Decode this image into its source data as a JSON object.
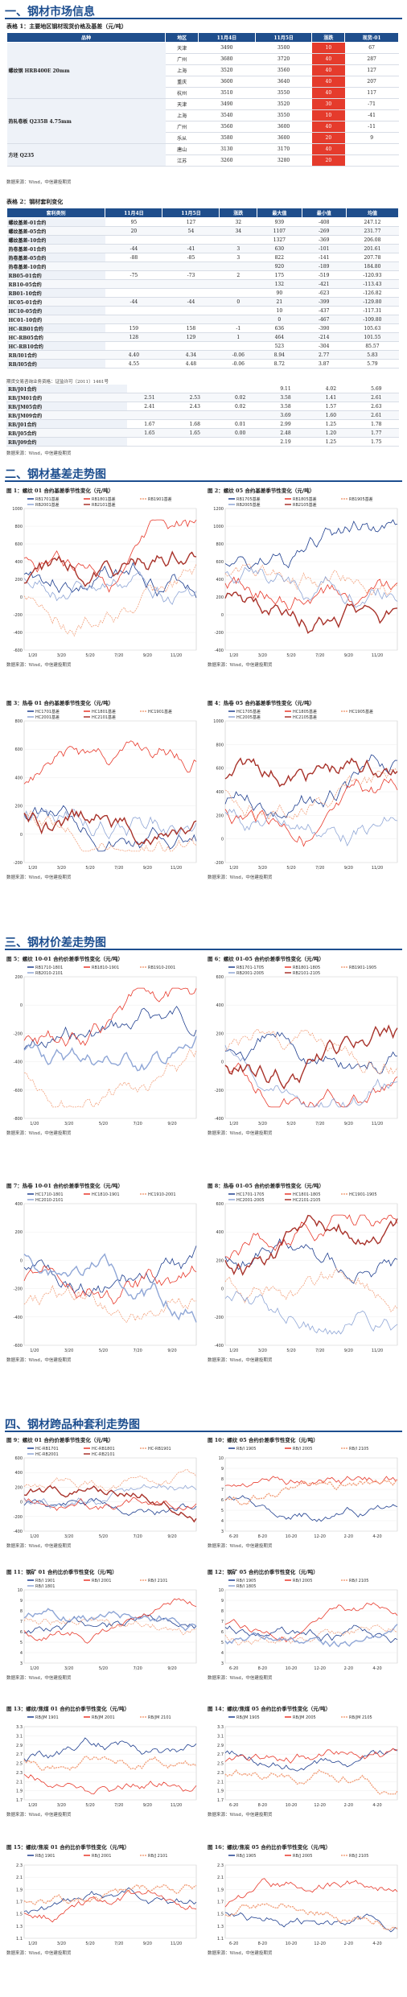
{
  "sec1": {
    "title": "一、钢材市场信息"
  },
  "table1": {
    "caption": "表格 1：主要地区钢材现货价格及基差（元/吨）",
    "headers": [
      "品种",
      "地区",
      "11月4日",
      "11月5日",
      "涨跌",
      "现货-01"
    ],
    "groups": [
      {
        "name": "螺纹钢 HRB400E 20mm",
        "rows": [
          [
            "天津",
            "3490",
            "3500",
            "10",
            "67"
          ],
          [
            "广州",
            "3680",
            "3720",
            "40",
            "287"
          ],
          [
            "上海",
            "3520",
            "3560",
            "40",
            "127"
          ],
          [
            "重庆",
            "3600",
            "3640",
            "40",
            "207"
          ],
          [
            "杭州",
            "3510",
            "3550",
            "40",
            "117"
          ]
        ]
      },
      {
        "name": "热轧卷板 Q235B 4.75mm",
        "rows": [
          [
            "天津",
            "3490",
            "3520",
            "30",
            "-71"
          ],
          [
            "上海",
            "3540",
            "3550",
            "10",
            "-41"
          ],
          [
            "广州",
            "3560",
            "3600",
            "40",
            "-11"
          ],
          [
            "乐从",
            "3580",
            "3600",
            "20",
            "9"
          ]
        ]
      },
      {
        "name": "方坯 Q235",
        "rows": [
          [
            "唐山",
            "3130",
            "3170",
            "40",
            ""
          ],
          [
            "江苏",
            "3260",
            "3280",
            "20",
            ""
          ]
        ]
      }
    ],
    "source": "数据来源：Wind，中信建投期货"
  },
  "table2": {
    "caption": "表格 2：钢材套利变化",
    "headers": [
      "套利类别",
      "11月4日",
      "11月5日",
      "涨跌",
      "最大值",
      "最小值",
      "均值"
    ],
    "rows": [
      [
        "螺纹基差-01合约",
        "95",
        "127",
        "32",
        "939",
        "-408",
        "247.12"
      ],
      [
        "螺纹基差-05合约",
        "20",
        "54",
        "34",
        "1107",
        "-269",
        "231.77"
      ],
      [
        "螺纹基差-10合约",
        "",
        "",
        "",
        "1327",
        "-369",
        "206.08"
      ],
      [
        "热卷基差-01合约",
        "-44",
        "-41",
        "3",
        "630",
        "-101",
        "201.61"
      ],
      [
        "热卷基差-05合约",
        "-88",
        "-85",
        "3",
        "822",
        "-141",
        "207.78"
      ],
      [
        "热卷基差-10合约",
        "",
        "",
        "",
        "920",
        "-189",
        "184.80"
      ],
      [
        "RB05-01合约",
        "-75",
        "-73",
        "2",
        "175",
        "-519",
        "-120.93"
      ],
      [
        "RB10-05合约",
        "",
        "",
        "",
        "132",
        "-421",
        "-113.43"
      ],
      [
        "RB01-10合约",
        "",
        "",
        "",
        "90",
        "-623",
        "-126.82"
      ],
      [
        "HC05-01合约",
        "-44",
        "-44",
        "0",
        "21",
        "-399",
        "-129.80"
      ],
      [
        "HC10-05合约",
        "",
        "",
        "",
        "10",
        "-437",
        "-117.31"
      ],
      [
        "HC01-10合约",
        "",
        "",
        "",
        "0",
        "-467",
        "-109.80"
      ],
      [
        "HC-RB01合约",
        "159",
        "158",
        "-1",
        "636",
        "-390",
        "105.63"
      ],
      [
        "HC-RB05合约",
        "128",
        "129",
        "1",
        "464",
        "-214",
        "101.55"
      ],
      [
        "HC-RB10合约",
        "",
        "",
        "",
        "523",
        "-304",
        "85.57"
      ],
      [
        "RB/I01合约",
        "4.40",
        "4.34",
        "-0.06",
        "8.94",
        "2.77",
        "5.83"
      ],
      [
        "RB/I05合约",
        "4.55",
        "4.48",
        "-0.06",
        "8.72",
        "3.87",
        "5.79"
      ]
    ],
    "note": "期货交易咨询业务资格：证监许可〔2011〕1461号",
    "cont_rows": [
      [
        "RB/J01合约",
        "",
        "",
        "",
        "9.11",
        "4.02",
        "5.69"
      ],
      [
        "RB/JM01合约",
        "2.51",
        "2.53",
        "0.02",
        "3.58",
        "1.41",
        "2.61"
      ],
      [
        "RB/JM05合约",
        "2.41",
        "2.43",
        "0.02",
        "3.58",
        "1.57",
        "2.63"
      ],
      [
        "RB/JM09合约",
        "",
        "",
        "",
        "3.69",
        "1.60",
        "2.61"
      ],
      [
        "RB/J01合约",
        "1.67",
        "1.68",
        "0.01",
        "2.99",
        "1.25",
        "1.78"
      ],
      [
        "RB/J05合约",
        "1.65",
        "1.65",
        "0.00",
        "2.48",
        "1.20",
        "1.77"
      ],
      [
        "RB/J09合约",
        "",
        "",
        "",
        "2.19",
        "1.25",
        "1.75"
      ]
    ],
    "source": "数据来源：Wind，中信建投期货"
  },
  "sec2": {
    "title": "二、钢材基差走势图"
  },
  "sec3": {
    "title": "三、钢材价差走势图"
  },
  "sec4": {
    "title": "四、钢材跨品种套利走势图"
  },
  "source_text": "数据来源：Wind，中信建投期货",
  "figures": {
    "f1": {
      "title": "图 1：螺纹 01 合约基差季节性变化（元/吨）",
      "legend": [
        "RB1701基差",
        "RB1801基差",
        "RB1901基差",
        "RB2001基差",
        "RB2101基差"
      ],
      "yticks": [
        "1000",
        "800",
        "600",
        "400",
        "200",
        "0",
        "-200",
        "-400",
        "-600"
      ],
      "xticks": [
        "1/20",
        "3/20",
        "5/20",
        "7/20",
        "9/20",
        "11/20"
      ]
    },
    "f2": {
      "title": "图 2：螺纹 05 合约基差季节性变化（元/吨）",
      "legend": [
        "RB1705基差",
        "RB1805基差",
        "RB1905基差",
        "RB2005基差",
        "RB2105基差"
      ],
      "yticks": [
        "1200",
        "1000",
        "800",
        "600",
        "400",
        "200",
        "0",
        "-200",
        "-400"
      ],
      "xticks": [
        "1/20",
        "3/20",
        "5/20",
        "7/20",
        "9/20",
        "11/20"
      ]
    },
    "f3": {
      "title": "图 3：热卷 01 合约基差季节性变化（元/吨）",
      "legend": [
        "HC1701基差",
        "HC1801基差",
        "HC1901基差",
        "HC2001基差",
        "HC2101基差"
      ],
      "yticks": [
        "800",
        "600",
        "400",
        "200",
        "0",
        "-200"
      ],
      "xticks": [
        "1/20",
        "3/20",
        "5/20",
        "7/20",
        "9/20",
        "11/20"
      ]
    },
    "f4": {
      "title": "图 4：热卷 05 合约基差季节性变化（元/吨）",
      "legend": [
        "HC1705基差",
        "HC1805基差",
        "HC1905基差",
        "HC2005基差",
        "HC2105基差"
      ],
      "yticks": [
        "1000",
        "800",
        "600",
        "400",
        "200",
        "0",
        "-200"
      ],
      "xticks": [
        "1/20",
        "3/20",
        "5/20",
        "7/20",
        "9/20",
        "11/20"
      ]
    },
    "f5": {
      "title": "图 5：螺纹 10-01 合约价差季节性变化（元/吨）",
      "legend": [
        "RB1710-1801",
        "RB1810-1901",
        "RB1910-2001",
        "RB2010-2101"
      ],
      "yticks": [
        "200",
        "0",
        "-200",
        "-400",
        "-600",
        "-800"
      ],
      "xticks": [
        "1/20",
        "3/20",
        "5/20",
        "7/20",
        "9/20"
      ]
    },
    "f6": {
      "title": "图 6：螺纹 01-05 合约价差季节性变化（元/吨）",
      "legend": [
        "RB1701-1705",
        "RB1801-1805",
        "RB1901-1905",
        "RB2001-2005",
        "RB2101-2105"
      ],
      "yticks": [
        "600",
        "400",
        "200",
        "0",
        "-200",
        "-400"
      ],
      "xticks": [
        "1/20",
        "3/20",
        "5/20",
        "7/20",
        "9/20",
        "11/20"
      ]
    },
    "f7": {
      "title": "图 7：热卷 10-01 合约价差季节性变化（元/吨）",
      "legend": [
        "HC1710-1801",
        "HC1810-1901",
        "HC1910-2001",
        "HC2010-2101"
      ],
      "yticks": [
        "400",
        "200",
        "0",
        "-200",
        "-400",
        "-600"
      ],
      "xticks": [
        "1/20",
        "3/20",
        "5/20",
        "7/20",
        "9/20"
      ]
    },
    "f8": {
      "title": "图 8：热卷 01-05 合约价差季节性变化（元/吨）",
      "legend": [
        "HC1701-1705",
        "HC1801-1805",
        "HC1901-1905",
        "HC2001-2005",
        "HC2101-2105"
      ],
      "yticks": [
        "600",
        "400",
        "200",
        "0",
        "-200",
        "-400"
      ],
      "xticks": [
        "1/20",
        "3/20",
        "5/20",
        "7/20",
        "9/20",
        "11/20"
      ]
    },
    "f9": {
      "title": "图 9：螺纹 01 合约价差季节性变化（元/吨）",
      "legend": [
        "HC-RB1701",
        "HC-RB1801",
        "HC-RB1901",
        "HC-RB2001",
        "HC-RB2101"
      ],
      "yticks": [
        "600",
        "400",
        "200",
        "0",
        "-200",
        "-400"
      ],
      "xticks": [
        "1/20",
        "3/20",
        "5/20",
        "7/20",
        "9/20"
      ]
    },
    "f10": {
      "title": "图 10：螺纹 05 合约价差季节性变化（元/吨）",
      "legend": [
        "RB/I 1905",
        "RB/I 2005",
        "RB/I 2105"
      ],
      "yticks": [
        "10",
        "9",
        "8",
        "7",
        "6",
        "5",
        "4",
        "3"
      ],
      "xticks": [
        "6-20",
        "8-20",
        "10-20",
        "12-20",
        "2-20",
        "4-20"
      ]
    },
    "f11": {
      "title": "图 11：钢矿 01 合约比价季节性变化（元/吨）",
      "legend": [
        "RB/I 1901",
        "RB/I 2001",
        "RB/I 2101",
        "RB/I 1801"
      ],
      "yticks": [
        "10",
        "9",
        "8",
        "7",
        "6",
        "5",
        "4",
        "3"
      ],
      "xticks": [
        "1/20",
        "3/20",
        "5/20",
        "7/20",
        "9/20"
      ]
    },
    "f12": {
      "title": "图 12：钢矿 05 合约比价季节性变化（元/吨）",
      "legend": [
        "RB/I 1905",
        "RB/I 2005",
        "RB/I 2105",
        "RB/I 1805"
      ],
      "yticks": [
        "10",
        "9",
        "8",
        "7",
        "6",
        "5",
        "4",
        "3"
      ],
      "xticks": [
        "6-20",
        "8-20",
        "10-20",
        "12-20",
        "2-20",
        "4-20"
      ]
    },
    "f13": {
      "title": "图 13：螺纹/焦煤 01 合约比价季节性变化（元/吨）",
      "legend": [
        "RB/JM 1901",
        "RB/JM 2001",
        "RB/JM 2101"
      ],
      "yticks": [
        "3.3",
        "3.1",
        "2.9",
        "2.7",
        "2.5",
        "2.3",
        "2.1",
        "1.9",
        "1.7"
      ],
      "xticks": [
        "1/20",
        "3/20",
        "5/20",
        "7/20",
        "9/20",
        "11/20"
      ]
    },
    "f14": {
      "title": "图 14：螺纹/焦煤 05 合约比价季节性变化（元/吨）",
      "legend": [
        "RB/JM 1905",
        "RB/JM 2005",
        "RB/JM 2105"
      ],
      "yticks": [
        "3.3",
        "3.1",
        "2.9",
        "2.7",
        "2.5",
        "2.3",
        "2.1",
        "1.9",
        "1.7"
      ],
      "xticks": [
        "6-20",
        "8-20",
        "10-20",
        "12-20",
        "2-20",
        "4-20"
      ]
    },
    "f15": {
      "title": "图 15：螺纹/焦炭 01 合约比价季节性变化（元/吨）",
      "legend": [
        "RB/J 1901",
        "RB/J 2001",
        "RB/J 2101"
      ],
      "yticks": [
        "2.3",
        "2.1",
        "1.9",
        "1.7",
        "1.5",
        "1.3",
        "1.1"
      ],
      "xticks": [
        "1/20",
        "3/20",
        "5/20",
        "7/20",
        "9/20",
        "11/20"
      ]
    },
    "f16": {
      "title": "图 16：螺纹/焦炭 05 合约比价季节性变化（元/吨）",
      "legend": [
        "RB/J 1905",
        "RB/J 2005",
        "RB/J 2105"
      ],
      "yticks": [
        "2.3",
        "2.1",
        "1.9",
        "1.7",
        "1.5",
        "1.3",
        "1.1"
      ],
      "xticks": [
        "6-20",
        "8-20",
        "10-20",
        "12-20",
        "2-20",
        "4-20"
      ]
    }
  },
  "colors": {
    "header": "#1f4e8c",
    "accent_red": "#e53b2c",
    "title_blue": "#1d4e8f",
    "series": [
      "#1f3f8f",
      "#e8392b",
      "#f2a07b",
      "#8fa6d6",
      "#a8322a"
    ]
  }
}
